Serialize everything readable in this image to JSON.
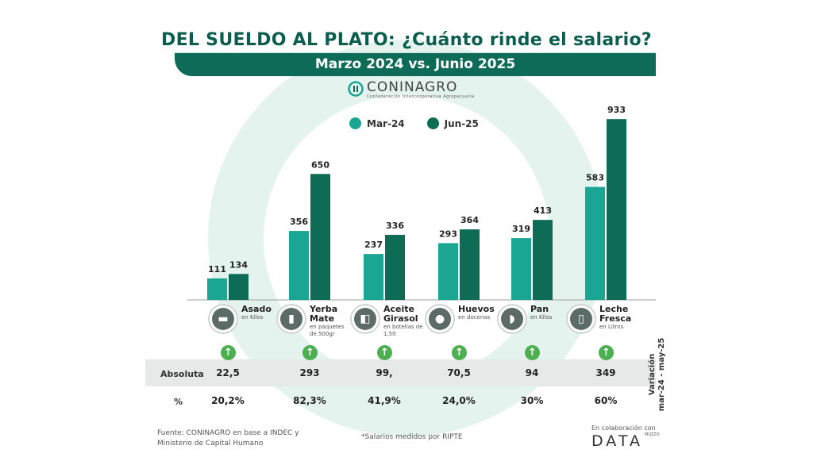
{
  "title": "DEL SUELDO AL PLATO: ¿Cuánto rinde el salario?",
  "subtitle": "Marzo 2024 vs. Junio 2025",
  "logo": {
    "name": "CONINAGRO",
    "tagline": "Confederación Intercooperativa Agropecuaria"
  },
  "colors": {
    "mar24": "#1ba593",
    "jun25": "#0d6b56",
    "accent_green": "#4caf50",
    "band": "#e7e9e8"
  },
  "chart_data": {
    "type": "bar",
    "categories": [
      "Asado",
      "Yerba Mate",
      "Aceite Girasol",
      "Huevos",
      "Pan",
      "Leche Fresca"
    ],
    "category_units": [
      "en Kilos",
      "en paquetes de 500gr",
      "en botellas de 1,5lt",
      "en docenas",
      "en Kilos",
      "en Litros"
    ],
    "category_icons": [
      "meat-icon",
      "yerba-package-icon",
      "oil-bottle-icon",
      "eggs-icon",
      "bread-icon",
      "milk-carton-icon"
    ],
    "series": [
      {
        "name": "Mar-24",
        "values": [
          111,
          356,
          237,
          293,
          319,
          583
        ],
        "labels": [
          "111",
          "356",
          "237",
          "293",
          "319",
          "583"
        ]
      },
      {
        "name": "Jun-25",
        "values": [
          134,
          650,
          336,
          364,
          413,
          933
        ],
        "labels": [
          "134",
          "650",
          "336",
          "364",
          "413",
          "933"
        ]
      }
    ],
    "ylim": [
      0,
      950
    ],
    "legend_position": "top-center"
  },
  "variation": {
    "axis_label": "Variación",
    "axis_period": "mar-24 - may-25",
    "absolute_label": "Absoluta",
    "percent_label": "%",
    "absolute": [
      "22,5",
      "293",
      "99,",
      "70,5",
      "94",
      "349"
    ],
    "percent": [
      "20,2%",
      "82,3%",
      "41,9%",
      "24,0%",
      "30%",
      "60%"
    ]
  },
  "footer": {
    "source_line1": "Fuente: CONINAGRO en base a INDEC y",
    "source_line2": "Ministerio de Capital Humano",
    "note": "*Salarios medidos por RIPTE",
    "collab": "En colaboración con",
    "data_logo": "DATA",
    "data_logo_sup": "MUZZO"
  }
}
